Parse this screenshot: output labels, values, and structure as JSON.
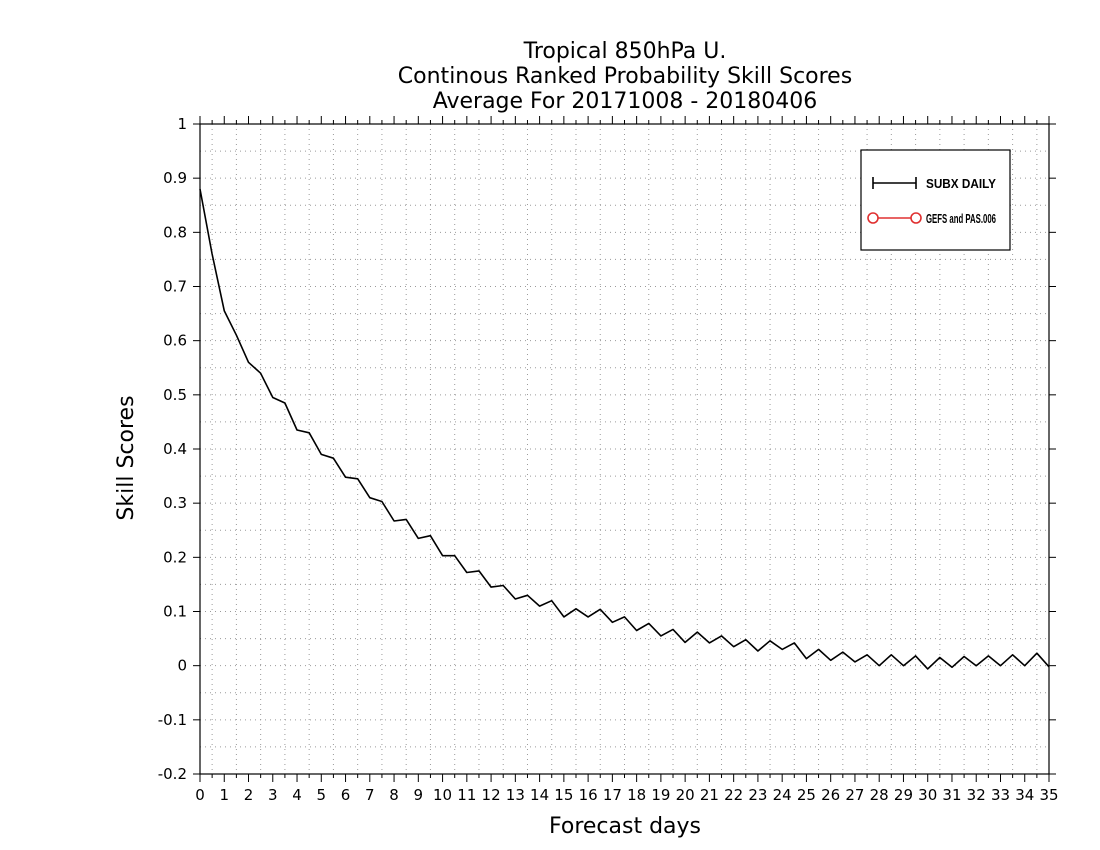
{
  "chart_data": {
    "type": "line",
    "title": [
      "Tropical 850hPa U.",
      "Continous Ranked Probability Skill Scores",
      "Average For 20171008 - 20180406"
    ],
    "xlabel": "Forecast days",
    "ylabel": "Skill Scores",
    "xlim": [
      0,
      35
    ],
    "ylim": [
      -0.2,
      1
    ],
    "xticks": [
      0,
      1,
      2,
      3,
      4,
      5,
      6,
      7,
      8,
      9,
      10,
      11,
      12,
      13,
      14,
      15,
      16,
      17,
      18,
      19,
      20,
      21,
      22,
      23,
      24,
      25,
      26,
      27,
      28,
      29,
      30,
      31,
      32,
      33,
      34,
      35
    ],
    "yticks": [
      -0.2,
      -0.1,
      0,
      0.1,
      0.2,
      0.3,
      0.4,
      0.5,
      0.6,
      0.7,
      0.8,
      0.9,
      1
    ],
    "grid": true,
    "legend_position": "top-right",
    "series": [
      {
        "name": "SUBX DAILY",
        "color": "#000000",
        "marker": "cross",
        "x": [
          0,
          0.5,
          1,
          1.5,
          2,
          2.5,
          3,
          3.5,
          4,
          4.5,
          5,
          5.5,
          6,
          6.5,
          7,
          7.5,
          8,
          8.5,
          9,
          9.5,
          10,
          10.5,
          11,
          11.5,
          12,
          12.5,
          13,
          13.5,
          14,
          14.5,
          15,
          15.5,
          16,
          16.5,
          17,
          17.5,
          18,
          18.5,
          19,
          19.5,
          20,
          20.5,
          21,
          21.5,
          22,
          22.5,
          23,
          23.5,
          24,
          24.5,
          25,
          25.5,
          26,
          26.5,
          27,
          27.5,
          28,
          28.5,
          29,
          29.5,
          30,
          30.5,
          31,
          31.5,
          32,
          32.5,
          33,
          33.5,
          34,
          34.5,
          35
        ],
        "values": [
          0.88,
          0.76,
          0.655,
          0.61,
          0.56,
          0.54,
          0.495,
          0.485,
          0.435,
          0.43,
          0.39,
          0.383,
          0.348,
          0.345,
          0.31,
          0.303,
          0.267,
          0.27,
          0.235,
          0.24,
          0.203,
          0.203,
          0.172,
          0.175,
          0.145,
          0.148,
          0.123,
          0.13,
          0.11,
          0.12,
          0.09,
          0.105,
          0.09,
          0.104,
          0.08,
          0.09,
          0.065,
          0.078,
          0.055,
          0.067,
          0.043,
          0.062,
          0.042,
          0.055,
          0.035,
          0.048,
          0.027,
          0.046,
          0.03,
          0.042,
          0.013,
          0.03,
          0.01,
          0.025,
          0.007,
          0.02,
          0.0,
          0.02,
          0.0,
          0.018,
          -0.006,
          0.015,
          -0.003,
          0.017,
          0.0,
          0.018,
          0.0,
          0.02,
          0.0,
          0.023,
          -0.002
        ]
      }
    ]
  },
  "legend": {
    "items": [
      {
        "label": "SUBX DAILY",
        "color": "#000000",
        "marker": "cross"
      },
      {
        "label": "GEFS and PAS.006",
        "color": "#e03030",
        "marker": "circle"
      }
    ]
  }
}
